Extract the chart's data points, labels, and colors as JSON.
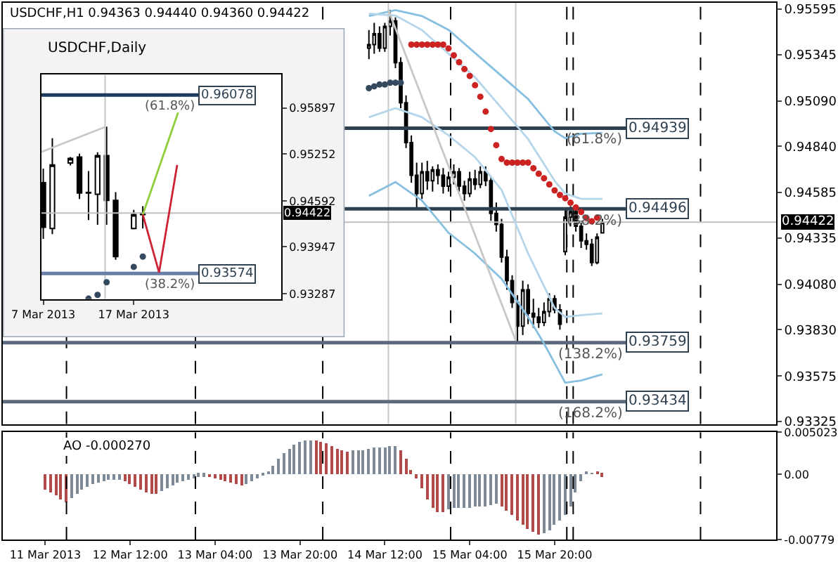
{
  "chart_data": [
    {
      "type": "candlestick",
      "title": "USDCHF,H1 0.94363 0.94440 0.94360 0.94422",
      "x": [
        "2013-03-14T09:00",
        "2013-03-14T10:00",
        "2013-03-14T11:00",
        "2013-03-14T12:00",
        "2013-03-14T13:00",
        "2013-03-14T14:00",
        "2013-03-14T15:00",
        "2013-03-14T16:00",
        "2013-03-14T17:00",
        "2013-03-14T18:00",
        "2013-03-14T19:00",
        "2013-03-14T20:00",
        "2013-03-14T21:00",
        "2013-03-14T22:00",
        "2013-03-14T23:00",
        "2013-03-15T00:00",
        "2013-03-15T01:00",
        "2013-03-15T02:00",
        "2013-03-15T03:00",
        "2013-03-15T04:00",
        "2013-03-15T05:00",
        "2013-03-15T06:00",
        "2013-03-15T07:00",
        "2013-03-15T08:00",
        "2013-03-15T09:00",
        "2013-03-15T10:00",
        "2013-03-15T11:00",
        "2013-03-15T12:00",
        "2013-03-15T13:00",
        "2013-03-15T14:00",
        "2013-03-15T15:00",
        "2013-03-15T16:00",
        "2013-03-15T17:00",
        "2013-03-15T18:00",
        "2013-03-15T19:00",
        "2013-03-15T20:00",
        "2013-03-15T21:00",
        "2013-03-15T22:00",
        "2013-03-15T23:00",
        "2013-03-16T00:00",
        "2013-03-16T01:00",
        "2013-03-16T02:00",
        "2013-03-16T03:00",
        "2013-03-16T04:00",
        "2013-03-16T05:00"
      ],
      "ohlc": [
        [
          0.9538,
          0.9548,
          0.9532,
          0.954
        ],
        [
          0.954,
          0.9552,
          0.9535,
          0.9546
        ],
        [
          0.9546,
          0.955,
          0.9536,
          0.9538
        ],
        [
          0.9538,
          0.9552,
          0.9536,
          0.955
        ],
        [
          0.955,
          0.9559,
          0.9545,
          0.9553
        ],
        [
          0.9553,
          0.9555,
          0.9527,
          0.953
        ],
        [
          0.953,
          0.9533,
          0.9505,
          0.9508
        ],
        [
          0.9508,
          0.9512,
          0.9483,
          0.9486
        ],
        [
          0.9486,
          0.949,
          0.9464,
          0.9468
        ],
        [
          0.9468,
          0.9475,
          0.945,
          0.9458
        ],
        [
          0.9458,
          0.9475,
          0.9455,
          0.947
        ],
        [
          0.947,
          0.9476,
          0.946,
          0.9465
        ],
        [
          0.9465,
          0.9473,
          0.9459,
          0.9471
        ],
        [
          0.9471,
          0.9474,
          0.9463,
          0.9468
        ],
        [
          0.9468,
          0.9472,
          0.9458,
          0.9462
        ],
        [
          0.9462,
          0.947,
          0.9459,
          0.9467
        ],
        [
          0.9467,
          0.9474,
          0.9463,
          0.947
        ],
        [
          0.947,
          0.9472,
          0.9459,
          0.9462
        ],
        [
          0.9462,
          0.9465,
          0.9454,
          0.9458
        ],
        [
          0.9458,
          0.947,
          0.9456,
          0.9466
        ],
        [
          0.9466,
          0.9471,
          0.946,
          0.9463
        ],
        [
          0.9463,
          0.9473,
          0.9461,
          0.947
        ],
        [
          0.947,
          0.9473,
          0.9462,
          0.9465
        ],
        [
          0.9465,
          0.9467,
          0.9443,
          0.9447
        ],
        [
          0.9447,
          0.9453,
          0.9437,
          0.9441
        ],
        [
          0.9441,
          0.9444,
          0.942,
          0.9423
        ],
        [
          0.9423,
          0.9427,
          0.9405,
          0.941
        ],
        [
          0.941,
          0.9413,
          0.9395,
          0.9398
        ],
        [
          0.9398,
          0.9402,
          0.9376,
          0.9385
        ],
        [
          0.9385,
          0.941,
          0.938,
          0.9405
        ],
        [
          0.9405,
          0.9408,
          0.9386,
          0.9392
        ],
        [
          0.9392,
          0.94,
          0.9384,
          0.939
        ],
        [
          0.939,
          0.9395,
          0.9384,
          0.9387
        ],
        [
          0.9387,
          0.9398,
          0.9385,
          0.9393
        ],
        [
          0.9393,
          0.9403,
          0.939,
          0.94
        ],
        [
          0.94,
          0.9402,
          0.9392,
          0.9394
        ],
        [
          0.9394,
          0.9397,
          0.9383,
          0.9386
        ],
        [
          0.9426,
          0.9449,
          0.9424,
          0.9445
        ],
        [
          0.9445,
          0.9451,
          0.944,
          0.9448
        ],
        [
          0.9448,
          0.945,
          0.9437,
          0.944
        ],
        [
          0.944,
          0.9443,
          0.9428,
          0.9432
        ],
        [
          0.9432,
          0.9436,
          0.9427,
          0.943
        ],
        [
          0.943,
          0.9433,
          0.9418,
          0.942
        ],
        [
          0.942,
          0.9436,
          0.9419,
          0.9434
        ],
        [
          0.94363,
          0.9444,
          0.9436,
          0.94422
        ]
      ],
      "series": [
        {
          "type": "line",
          "color": "#87bfe0",
          "x": [
            "2013-03-14T09:00",
            "2013-03-14T14:00",
            "2013-03-14T19:00",
            "2013-03-15T00:00",
            "2013-03-15T05:00",
            "2013-03-15T10:00",
            "2013-03-15T15:00",
            "2013-03-15T20:00",
            "2013-03-15T22:00",
            "2013-03-16T01:00",
            "2013-03-16T05:00"
          ],
          "values": [
            0.95557,
            0.9559,
            0.95557,
            0.95481,
            0.95354,
            0.95227,
            0.951,
            0.94922,
            0.94884,
            0.94909,
            0.94914
          ]
        },
        {
          "type": "line",
          "color": "#b5d6ea",
          "x": [
            "2013-03-14T09:00",
            "2013-03-14T14:00",
            "2013-03-14T19:00",
            "2013-03-15T00:00",
            "2013-03-15T05:00",
            "2013-03-15T10:00",
            "2013-03-15T15:00",
            "2013-03-15T20:00",
            "2013-03-15T22:00",
            "2013-03-16T01:00",
            "2013-03-16T05:00"
          ],
          "values": [
            0.9557,
            0.9556,
            0.9548,
            0.9535,
            0.9522,
            0.9505,
            0.9488,
            0.9465,
            0.9458,
            0.9455,
            0.9455
          ]
        },
        {
          "type": "line",
          "color": "#b5d6ea",
          "x": [
            "2013-03-14T09:00",
            "2013-03-14T14:00",
            "2013-03-14T19:00",
            "2013-03-15T00:00",
            "2013-03-15T05:00",
            "2013-03-15T10:00",
            "2013-03-15T15:00",
            "2013-03-15T20:00",
            "2013-03-15T22:00",
            "2013-03-16T01:00",
            "2013-03-16T05:00"
          ],
          "values": [
            0.95,
            0.9505,
            0.95,
            0.949,
            0.9478,
            0.946,
            0.9425,
            0.9395,
            0.939,
            0.9391,
            0.9392
          ]
        },
        {
          "type": "line",
          "color": "#87bfe0",
          "x": [
            "2013-03-14T09:00",
            "2013-03-14T14:00",
            "2013-03-14T19:00",
            "2013-03-15T00:00",
            "2013-03-15T05:00",
            "2013-03-15T10:00",
            "2013-03-15T15:00",
            "2013-03-15T18:00",
            "2013-03-15T22:00",
            "2013-03-16T01:00",
            "2013-03-16T05:00"
          ],
          "values": [
            0.94567,
            0.94643,
            0.94541,
            0.94364,
            0.94249,
            0.9411,
            0.939,
            0.93754,
            0.93538,
            0.9355,
            0.93584
          ]
        },
        {
          "type": "line",
          "color": "#c8c8c8",
          "x": [
            "2013-03-14T12:40",
            "2013-03-15T12:40"
          ],
          "values": [
            0.9559,
            0.9377
          ]
        },
        {
          "type": "scatter",
          "marker": "circle",
          "color": "#34495e",
          "x": [
            "2013-03-14T09:00",
            "2013-03-14T10:00",
            "2013-03-14T11:00",
            "2013-03-14T12:00",
            "2013-03-14T13:00",
            "2013-03-14T14:00",
            "2013-03-14T15:00"
          ],
          "values": [
            0.9516,
            0.9517,
            0.9518,
            0.9518,
            0.9519,
            0.9519,
            0.9519
          ]
        },
        {
          "type": "scatter",
          "marker": "circle",
          "color": "#cc2222",
          "x": [
            "2013-03-14T17:00",
            "2013-03-14T18:00",
            "2013-03-14T19:00",
            "2013-03-14T20:00",
            "2013-03-14T21:00",
            "2013-03-14T22:00",
            "2013-03-14T23:00",
            "2013-03-15T00:00",
            "2013-03-15T01:00",
            "2013-03-15T02:00",
            "2013-03-15T03:00",
            "2013-03-15T04:00",
            "2013-03-15T05:00",
            "2013-03-15T06:00",
            "2013-03-15T07:00",
            "2013-03-15T08:00",
            "2013-03-15T09:00",
            "2013-03-15T10:00",
            "2013-03-15T11:00",
            "2013-03-15T12:00",
            "2013-03-15T13:00",
            "2013-03-15T14:00",
            "2013-03-15T15:00",
            "2013-03-15T16:00",
            "2013-03-15T17:00",
            "2013-03-15T18:00",
            "2013-03-15T19:00",
            "2013-03-15T20:00",
            "2013-03-15T21:00",
            "2013-03-15T22:00",
            "2013-03-15T23:00",
            "2013-03-16T00:00",
            "2013-03-16T01:00",
            "2013-03-16T02:00",
            "2013-03-16T03:00",
            "2013-03-16T04:00"
          ],
          "values": [
            0.954,
            0.954,
            0.954,
            0.954,
            0.954,
            0.954,
            0.954,
            0.95379,
            0.95341,
            0.95303,
            0.95265,
            0.95227,
            0.95176,
            0.95113,
            0.95031,
            0.94935,
            0.94846,
            0.9477,
            0.9475,
            0.9475,
            0.9475,
            0.9475,
            0.9475,
            0.94719,
            0.94689,
            0.94664,
            0.9463,
            0.94597,
            0.94572,
            0.94554,
            0.94529,
            0.94503,
            0.94478,
            0.94445,
            0.94427,
            0.94447
          ]
        }
      ],
      "xlim": [
        "2013-03-11T12:00",
        "2013-03-17T13:45"
      ],
      "ylim": [
        0.9331,
        0.9563
      ],
      "yticks": [
        0.95595,
        0.95345,
        {
          "value": 0.9509,
          "label": "0.95090"
        },
        {
          "value": 0.9484,
          "label": "0.94840"
        },
        0.94585,
        0.94335,
        {
          "value": 0.9408,
          "label": "0.94080"
        },
        {
          "value": 0.9383,
          "label": "0.93830"
        },
        0.93575,
        0.93325
      ],
      "tick_labels": "y",
      "grid": false,
      "annotations": [
        {
          "text": "(61.8%)",
          "x": "2013-03-16T09:30",
          "y": 0.94939
        },
        {
          "text": "(38.2%)",
          "x": "2013-03-16T09:30",
          "y": 0.94496
        },
        {
          "text": "(138.2%)",
          "x": "2013-03-16T09:30",
          "y": 0.93759
        },
        {
          "text": "(168.2%)",
          "x": "2013-03-16T09:30",
          "y": 0.93434
        }
      ],
      "ref_lines": [
        {
          "axis": "x",
          "value": "2013-03-12T00:00",
          "color": "#000000",
          "line_style": "dashed"
        },
        {
          "axis": "x",
          "value": "2013-03-13T00:18",
          "color": "#000000",
          "line_style": "dashed"
        },
        {
          "axis": "x",
          "value": "2013-03-14T00:18",
          "color": "#000000",
          "line_style": "dashed"
        },
        {
          "axis": "x",
          "value": "2013-03-15T00:24",
          "color": "#000000",
          "line_style": "dashed"
        },
        {
          "axis": "x",
          "value": "2013-03-15T22:18",
          "color": "#000000",
          "line_style": "dashed"
        },
        {
          "axis": "x",
          "value": "2013-03-15T23:30",
          "color": "#000000",
          "line_style": "dashed"
        },
        {
          "axis": "x",
          "value": "2013-03-16T23:30",
          "color": "#000000",
          "line_style": "dashed"
        },
        {
          "axis": "x",
          "value": "2013-03-14T12:40",
          "color": "#c8c8c8"
        },
        {
          "axis": "x",
          "value": "2013-03-15T12:40",
          "color": "#c8c8c8"
        },
        {
          "axis": "y",
          "value": 0.94422,
          "label": "0.94422",
          "color": "#c0c0c0"
        },
        {
          "axis": "y",
          "value": 0.94939,
          "label": "0.94939",
          "color": "#2f4050"
        },
        {
          "axis": "y",
          "value": 0.94496,
          "label": "0.94496",
          "color": "#2f4050"
        },
        {
          "axis": "y",
          "value": 0.93759,
          "label": "0.93759",
          "color": "#5a6a7a"
        },
        {
          "axis": "y",
          "value": 0.93434,
          "label": "0.93434",
          "color": "#5a6a7a"
        }
      ]
    },
    {
      "type": "candlestick",
      "title": "USDCHF,Daily",
      "x": [
        "2013-03-07",
        "2013-03-08",
        "2013-03-10",
        "2013-03-11",
        "2013-03-12",
        "2013-03-13",
        "2013-03-14",
        "2013-03-15",
        "2013-03-17",
        "2013-03-18"
      ],
      "ohlc": [
        [
          0.94848,
          0.95045,
          0.94061,
          0.94224
        ],
        [
          0.94205,
          0.95472,
          0.94126,
          0.95098
        ],
        [
          0.95124,
          0.95209,
          0.95091,
          0.95189
        ],
        [
          0.95209,
          0.95255,
          0.94619,
          0.94704
        ],
        [
          0.94704,
          0.95012,
          0.94323,
          0.9471
        ],
        [
          0.94685,
          0.95274,
          0.94258,
          0.95228
        ],
        [
          0.95228,
          0.95635,
          0.94258,
          0.94599
        ],
        [
          0.94599,
          0.94716,
          0.93766,
          0.93811
        ],
        [
          0.94205,
          0.94467,
          0.94193,
          0.94401
        ],
        [
          0.94401,
          0.94519,
          0.94205,
          0.94422
        ]
      ],
      "series": [
        {
          "type": "line",
          "color": "#c8c8c8",
          "x": [
            "2013-03-06T19:12",
            "2013-03-13T20:00"
          ],
          "values": [
            0.9528,
            0.9563
          ]
        },
        {
          "type": "scatter",
          "marker": "circle",
          "color": "#34495e",
          "x": [
            "2013-03-12",
            "2013-03-13",
            "2013-03-14",
            "2013-03-17",
            "2013-03-18"
          ],
          "values": [
            0.93221,
            0.93274,
            0.93451,
            0.93667,
            0.93811
          ]
        },
        {
          "type": "line",
          "color": "#8fce3a",
          "x": [
            "2013-03-18",
            "2013-03-21T21:36"
          ],
          "values": [
            0.94401,
            0.95832
          ]
        },
        {
          "type": "line",
          "color": "#cc2233",
          "x": [
            "2013-03-18",
            "2013-03-19T19:12",
            "2013-03-21T19:12"
          ],
          "values": [
            0.94401,
            0.93589,
            0.95098
          ]
        }
      ],
      "xlim": [
        "2013-03-06T19:12",
        "2013-04-02T07:12"
      ],
      "ylim": [
        0.93215,
        0.96363
      ],
      "xticks": [
        {
          "value": "2013-03-07",
          "label": "7 Mar 2013"
        },
        {
          "value": "2013-03-17",
          "label": "17 Mar 2013"
        }
      ],
      "yticks": [
        0.95897,
        0.95252,
        0.94592,
        0.93947,
        0.93287
      ],
      "grid": false,
      "annotations": [
        {
          "text": "(61.8%)",
          "x": "2013-03-24T04:48",
          "y": 0.96078
        },
        {
          "text": "(38.2%)",
          "x": "2013-03-24T04:48",
          "y": 0.93574
        }
      ],
      "ref_lines": [
        {
          "axis": "x",
          "value": "2013-03-13T20:00",
          "color": "#c8c8c8"
        },
        {
          "axis": "y",
          "value": 0.94422,
          "label": "0.94422",
          "color": "#c0c0c0"
        },
        {
          "axis": "y",
          "value": 0.96078,
          "label": "0.96078",
          "color": "#1f3a5f"
        },
        {
          "axis": "y",
          "value": 0.93574,
          "label": "0.93574",
          "color": "#6a7fa8"
        }
      ]
    },
    {
      "type": "bar",
      "x": [
        "2013-03-11T20:00",
        "2013-03-11T21:00",
        "2013-03-11T22:00",
        "2013-03-11T23:00",
        "2013-03-12T00:00",
        "2013-03-12T01:00",
        "2013-03-12T02:00",
        "2013-03-12T03:00",
        "2013-03-12T04:00",
        "2013-03-12T05:00",
        "2013-03-12T06:00",
        "2013-03-12T07:00",
        "2013-03-12T08:00",
        "2013-03-12T09:00",
        "2013-03-12T10:00",
        "2013-03-12T11:00",
        "2013-03-12T12:00",
        "2013-03-12T13:00",
        "2013-03-12T14:00",
        "2013-03-12T15:00",
        "2013-03-12T16:00",
        "2013-03-12T17:00",
        "2013-03-12T18:00",
        "2013-03-12T19:00",
        "2013-03-12T20:00",
        "2013-03-12T21:00",
        "2013-03-12T22:00",
        "2013-03-12T23:00",
        "2013-03-13T00:00",
        "2013-03-13T01:00",
        "2013-03-13T02:00",
        "2013-03-13T03:00",
        "2013-03-13T04:00",
        "2013-03-13T05:00",
        "2013-03-13T06:00",
        "2013-03-13T07:00",
        "2013-03-13T08:00",
        "2013-03-13T09:00",
        "2013-03-13T10:00",
        "2013-03-13T11:00",
        "2013-03-13T12:00",
        "2013-03-13T13:00",
        "2013-03-13T14:00",
        "2013-03-13T15:00",
        "2013-03-13T16:00",
        "2013-03-13T17:00",
        "2013-03-13T18:00",
        "2013-03-13T19:00",
        "2013-03-13T20:00",
        "2013-03-13T21:00",
        "2013-03-13T22:00",
        "2013-03-13T23:00",
        "2013-03-14T00:00",
        "2013-03-14T01:00",
        "2013-03-14T02:00",
        "2013-03-14T03:00",
        "2013-03-14T04:00",
        "2013-03-14T05:00",
        "2013-03-14T06:00",
        "2013-03-14T07:00",
        "2013-03-14T08:00",
        "2013-03-14T09:00",
        "2013-03-14T10:00",
        "2013-03-14T11:00",
        "2013-03-14T12:00",
        "2013-03-14T13:00",
        "2013-03-14T14:00",
        "2013-03-14T15:00",
        "2013-03-14T16:00",
        "2013-03-14T17:00",
        "2013-03-14T18:00",
        "2013-03-14T19:00",
        "2013-03-14T20:00",
        "2013-03-14T21:00",
        "2013-03-14T22:00",
        "2013-03-14T23:00",
        "2013-03-15T00:00",
        "2013-03-15T01:00",
        "2013-03-15T02:00",
        "2013-03-15T03:00",
        "2013-03-15T04:00",
        "2013-03-15T05:00",
        "2013-03-15T06:00",
        "2013-03-15T07:00",
        "2013-03-15T08:00",
        "2013-03-15T09:00",
        "2013-03-15T10:00",
        "2013-03-15T11:00",
        "2013-03-15T12:00",
        "2013-03-15T13:00",
        "2013-03-15T14:00",
        "2013-03-15T15:00",
        "2013-03-15T16:00",
        "2013-03-15T17:00",
        "2013-03-15T18:00",
        "2013-03-15T19:00",
        "2013-03-15T20:00",
        "2013-03-15T21:00",
        "2013-03-15T22:00",
        "2013-03-15T23:00",
        "2013-03-16T00:00",
        "2013-03-16T01:00",
        "2013-03-16T02:00",
        "2013-03-16T03:00",
        "2013-03-16T04:00",
        "2013-03-16T05:00"
      ],
      "values": [
        -0.0018,
        -0.0022,
        -0.0026,
        -0.003,
        -0.0034,
        -0.0028,
        -0.0024,
        -0.0019,
        -0.0015,
        -0.0012,
        -0.001,
        -0.0008,
        -0.0007,
        -0.0006,
        -0.0006,
        -0.0008,
        -0.0011,
        -0.0015,
        -0.0019,
        -0.0022,
        -0.0024,
        -0.0024,
        -0.0021,
        -0.0017,
        -0.0013,
        -0.001,
        -0.0008,
        -0.0006,
        -0.0005,
        -0.0003,
        -0.0003,
        -0.0004,
        -0.0005,
        -0.0006,
        -0.0008,
        -0.001,
        -0.0012,
        -0.0013,
        -0.0012,
        -0.0009,
        -0.0005,
        -0.0002,
        0.0003,
        0.001,
        0.0018,
        0.0025,
        0.003,
        0.0035,
        0.0038,
        0.004,
        0.0041,
        0.004,
        0.0039,
        0.0036,
        0.0033,
        0.003,
        0.0028,
        0.0027,
        0.0028,
        0.0029,
        0.0029,
        0.003,
        0.0031,
        0.0031,
        0.0032,
        0.0033,
        0.0034,
        0.0028,
        0.0018,
        0.0005,
        -0.0005,
        -0.0017,
        -0.003,
        -0.004,
        -0.0045,
        -0.0046,
        -0.0042,
        -0.0041,
        -0.0041,
        -0.004,
        -0.004,
        -0.0039,
        -0.0038,
        -0.0038,
        -0.0037,
        -0.0036,
        -0.0039,
        -0.0044,
        -0.0049,
        -0.0055,
        -0.006,
        -0.0065,
        -0.0069,
        -0.0072,
        -0.0071,
        -0.0067,
        -0.0061,
        -0.0055,
        -0.0048,
        -0.0038,
        -0.0022,
        -0.0008,
        0.0002,
        0.0001,
        0.0002,
        -0.0003
      ],
      "colors": [
        "#b24a4a",
        "#b24a4a",
        "#b24a4a",
        "#b24a4a",
        "#b24a4a",
        "#7d8a96",
        "#7d8a96",
        "#7d8a96",
        "#7d8a96",
        "#7d8a96",
        "#7d8a96",
        "#7d8a96",
        "#7d8a96",
        "#7d8a96",
        "#7d8a96",
        "#b24a4a",
        "#b24a4a",
        "#b24a4a",
        "#b24a4a",
        "#b24a4a",
        "#b24a4a",
        "#b24a4a",
        "#7d8a96",
        "#7d8a96",
        "#7d8a96",
        "#7d8a96",
        "#7d8a96",
        "#7d8a96",
        "#7d8a96",
        "#7d8a96",
        "#7d8a96",
        "#b24a4a",
        "#b24a4a",
        "#b24a4a",
        "#b24a4a",
        "#b24a4a",
        "#b24a4a",
        "#b24a4a",
        "#7d8a96",
        "#7d8a96",
        "#7d8a96",
        "#7d8a96",
        "#7d8a96",
        "#7d8a96",
        "#7d8a96",
        "#7d8a96",
        "#7d8a96",
        "#7d8a96",
        "#7d8a96",
        "#7d8a96",
        "#7d8a96",
        "#b24a4a",
        "#b24a4a",
        "#b24a4a",
        "#b24a4a",
        "#b24a4a",
        "#b24a4a",
        "#b24a4a",
        "#7d8a96",
        "#7d8a96",
        "#7d8a96",
        "#7d8a96",
        "#7d8a96",
        "#7d8a96",
        "#7d8a96",
        "#7d8a96",
        "#7d8a96",
        "#b24a4a",
        "#b24a4a",
        "#b24a4a",
        "#b24a4a",
        "#b24a4a",
        "#b24a4a",
        "#b24a4a",
        "#b24a4a",
        "#b24a4a",
        "#7d8a96",
        "#7d8a96",
        "#7d8a96",
        "#7d8a96",
        "#7d8a96",
        "#7d8a96",
        "#7d8a96",
        "#7d8a96",
        "#7d8a96",
        "#7d8a96",
        "#b24a4a",
        "#b24a4a",
        "#b24a4a",
        "#b24a4a",
        "#b24a4a",
        "#b24a4a",
        "#b24a4a",
        "#b24a4a",
        "#7d8a96",
        "#7d8a96",
        "#7d8a96",
        "#7d8a96",
        "#7d8a96",
        "#7d8a96",
        "#7d8a96",
        "#7d8a96",
        "#7d8a96",
        "#7d8a96",
        "#b24a4a",
        "#b24a4a"
      ],
      "xlim": [
        "2013-03-11T12:00",
        "2013-03-17T13:45"
      ],
      "ylim": [
        -0.00779,
        0.005023
      ],
      "xticks": [
        {
          "value": "2013-03-11T20:00",
          "label": "11 Mar 2013"
        },
        {
          "value": "2013-03-12T12:00",
          "label": "12 Mar 12:00"
        },
        {
          "value": "2013-03-13T04:00",
          "label": "13 Mar 04:00"
        },
        {
          "value": "2013-03-13T20:00",
          "label": "13 Mar 20:00"
        },
        {
          "value": "2013-03-14T12:00",
          "label": "14 Mar 12:00"
        },
        {
          "value": "2013-03-15T04:00",
          "label": "15 Mar 04:00"
        },
        {
          "value": "2013-03-15T20:00",
          "label": "15 Mar 20:00"
        }
      ],
      "yticks": [
        0.005023,
        {
          "value": 0,
          "label": "0.00"
        },
        -0.00779
      ],
      "grid": false,
      "annotations": [
        "AO -0.000270"
      ],
      "ref_lines": [
        {
          "axis": "x",
          "value": "2013-03-12T00:00",
          "color": "#000000",
          "line_style": "dashed"
        },
        {
          "axis": "x",
          "value": "2013-03-13T00:18",
          "color": "#000000",
          "line_style": "dashed"
        },
        {
          "axis": "x",
          "value": "2013-03-14T00:18",
          "color": "#000000",
          "line_style": "dashed"
        },
        {
          "axis": "x",
          "value": "2013-03-15T00:24",
          "color": "#000000",
          "line_style": "dashed"
        },
        {
          "axis": "x",
          "value": "2013-03-15T22:18",
          "color": "#000000",
          "line_style": "dashed"
        },
        {
          "axis": "x",
          "value": "2013-03-15T23:30",
          "color": "#000000",
          "line_style": "dashed"
        },
        {
          "axis": "x",
          "value": "2013-03-16T23:30",
          "color": "#000000",
          "line_style": "dashed"
        }
      ]
    }
  ]
}
